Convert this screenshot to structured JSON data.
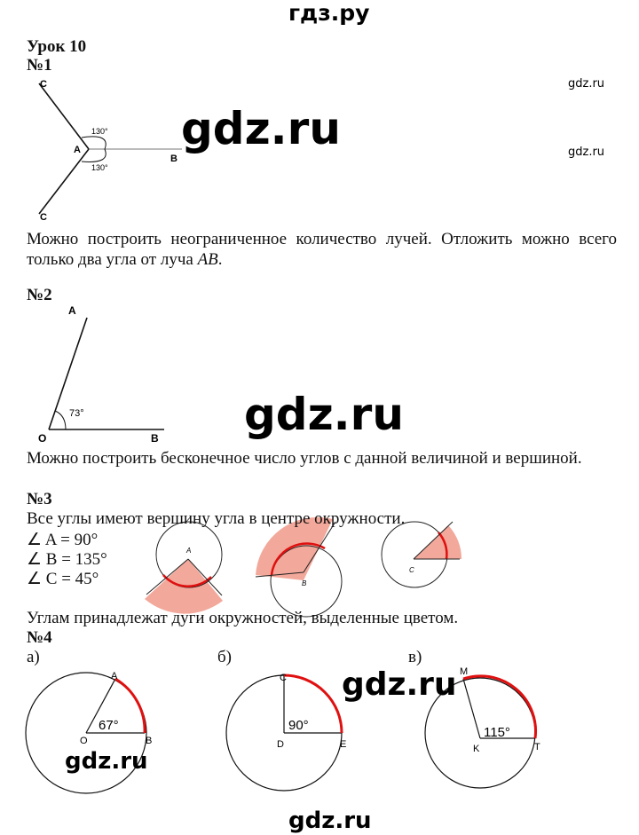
{
  "header": {
    "site": "гдз.ру"
  },
  "lesson_title": "Урок 10",
  "watermark": "gdz.ru",
  "tasks": [
    {
      "number": "№1",
      "labels": {
        "c_top": "C",
        "a": "A",
        "b": "B",
        "c_bottom": "C",
        "angle_top": "130°",
        "angle_bottom": "130°"
      },
      "text_before": "Можно построить неограниченное количество лучей. Отложить можно всего только два угла от луча ",
      "text_italic": "AB",
      "text_after": "."
    },
    {
      "number": "№2",
      "labels": {
        "a": "A",
        "o": "O",
        "b": "B",
        "angle": "73°"
      },
      "text": "Можно построить бесконечное число углов с данной величиной и вершиной."
    },
    {
      "number": "№3",
      "intro": "Все углы имеют вершину угла в центре окружности.",
      "angles": [
        "∠ A = 90°",
        "∠ B = 135°",
        "∠ C = 45°"
      ],
      "figure_labels": [
        "A",
        "B",
        "C"
      ],
      "conclusion": "Углам принадлежат дуги окружностей, выделенные цветом.",
      "colors": {
        "sector": "#f2a89a",
        "arc": "#e01010"
      }
    },
    {
      "number": "№4",
      "parts": [
        {
          "label": "а)",
          "points": [
            "A",
            "O",
            "B"
          ],
          "angle": "67°"
        },
        {
          "label": "б)",
          "points": [
            "C",
            "D",
            "E"
          ],
          "angle": "90°"
        },
        {
          "label": "в)",
          "points": [
            "M",
            "K",
            "T"
          ],
          "angle": "115°"
        }
      ],
      "colors": {
        "arc": "#e01010"
      }
    }
  ]
}
